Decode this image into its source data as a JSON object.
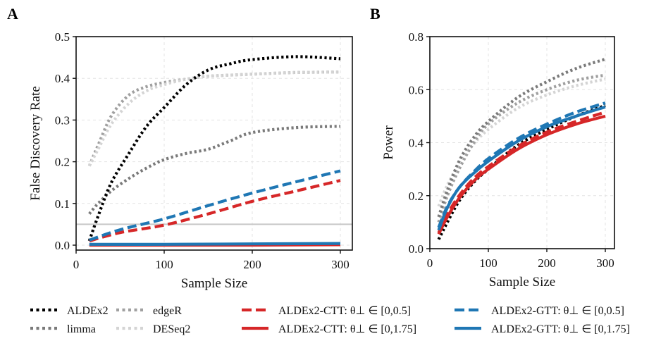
{
  "chart_data": [
    {
      "type": "line",
      "panel": "A",
      "title": "",
      "xlabel": "Sample Size",
      "ylabel": "False Discovery Rate",
      "xlim": [
        0,
        310
      ],
      "ylim": [
        -0.01,
        0.5
      ],
      "xticks": [
        0,
        100,
        200,
        300
      ],
      "yticks": [
        0.0,
        0.1,
        0.2,
        0.3,
        0.4,
        0.5
      ],
      "xtick_labels": [
        "0",
        "100",
        "200",
        "300"
      ],
      "ytick_labels": [
        "0.0",
        "0.1",
        "0.2",
        "0.3",
        "0.4",
        "0.5"
      ],
      "grid": true,
      "reference_line": {
        "y": 0.05,
        "color": "#c8c8c8"
      },
      "series": [
        {
          "name": "edgeR",
          "x": [
            15,
            25,
            40,
            60,
            80,
            100,
            125,
            150,
            200,
            250,
            300
          ],
          "y": [
            0.19,
            0.24,
            0.31,
            0.36,
            0.38,
            0.39,
            0.398,
            0.405,
            0.41,
            0.414,
            0.415
          ]
        },
        {
          "name": "DESeq2",
          "x": [
            15,
            25,
            40,
            60,
            80,
            100,
            125,
            150,
            200,
            250,
            300
          ],
          "y": [
            0.19,
            0.23,
            0.29,
            0.34,
            0.37,
            0.385,
            0.398,
            0.405,
            0.41,
            0.414,
            0.415
          ]
        },
        {
          "name": "limma",
          "x": [
            15,
            25,
            40,
            60,
            80,
            100,
            125,
            150,
            175,
            200,
            250,
            300
          ],
          "y": [
            0.075,
            0.1,
            0.13,
            0.16,
            0.185,
            0.205,
            0.22,
            0.23,
            0.25,
            0.27,
            0.282,
            0.285
          ]
        },
        {
          "name": "ALDEx2",
          "x": [
            15,
            25,
            40,
            60,
            80,
            100,
            125,
            150,
            175,
            200,
            250,
            300
          ],
          "y": [
            0.01,
            0.07,
            0.15,
            0.22,
            0.285,
            0.33,
            0.385,
            0.42,
            0.435,
            0.445,
            0.452,
            0.447
          ]
        },
        {
          "name": "ALDEx2-CTT: θ⊥ ∈ [0,0.5]",
          "x": [
            15,
            50,
            100,
            150,
            200,
            250,
            300
          ],
          "y": [
            0.01,
            0.03,
            0.048,
            0.075,
            0.105,
            0.13,
            0.155
          ]
        },
        {
          "name": "ALDEx2-CTT: θ⊥ ∈ [0,1.75]",
          "x": [
            15,
            100,
            200,
            300
          ],
          "y": [
            0.0,
            0.0,
            0.0,
            0.001
          ]
        },
        {
          "name": "ALDEx2-GTT: θ⊥ ∈ [0,0.5]",
          "x": [
            15,
            50,
            100,
            150,
            200,
            250,
            300
          ],
          "y": [
            0.012,
            0.037,
            0.063,
            0.095,
            0.125,
            0.152,
            0.178
          ]
        },
        {
          "name": "ALDEx2-GTT: θ⊥ ∈ [0,1.75]",
          "x": [
            15,
            100,
            200,
            300
          ],
          "y": [
            0.002,
            0.002,
            0.003,
            0.004
          ]
        }
      ]
    },
    {
      "type": "line",
      "panel": "B",
      "title": "",
      "xlabel": "Sample Size",
      "ylabel": "Power",
      "xlim": [
        0,
        315
      ],
      "ylim": [
        0.0,
        0.8
      ],
      "xticks": [
        0,
        100,
        200,
        300
      ],
      "yticks": [
        0.0,
        0.2,
        0.4,
        0.6,
        0.8
      ],
      "xtick_labels": [
        "0",
        "100",
        "200",
        "300"
      ],
      "ytick_labels": [
        "0.0",
        "0.2",
        "0.4",
        "0.6",
        "0.8"
      ],
      "grid": true,
      "series": [
        {
          "name": "DESeq2",
          "x": [
            15,
            30,
            50,
            75,
            100,
            150,
            200,
            250,
            300
          ],
          "y": [
            0.16,
            0.24,
            0.32,
            0.395,
            0.45,
            0.53,
            0.58,
            0.615,
            0.64
          ]
        },
        {
          "name": "edgeR",
          "x": [
            15,
            30,
            50,
            75,
            100,
            150,
            200,
            250,
            300
          ],
          "y": [
            0.1,
            0.2,
            0.3,
            0.4,
            0.47,
            0.55,
            0.6,
            0.635,
            0.655
          ]
        },
        {
          "name": "limma",
          "x": [
            15,
            30,
            50,
            75,
            100,
            150,
            200,
            250,
            300
          ],
          "y": [
            0.12,
            0.22,
            0.33,
            0.42,
            0.48,
            0.57,
            0.63,
            0.68,
            0.715
          ]
        },
        {
          "name": "ALDEx2",
          "x": [
            15,
            30,
            50,
            75,
            100,
            150,
            200,
            250,
            300
          ],
          "y": [
            0.035,
            0.1,
            0.18,
            0.25,
            0.3,
            0.39,
            0.45,
            0.5,
            0.54
          ]
        },
        {
          "name": "ALDEx2-CTT: θ⊥ ∈ [0,0.5]",
          "x": [
            15,
            30,
            50,
            75,
            100,
            150,
            200,
            250,
            300
          ],
          "y": [
            0.06,
            0.13,
            0.2,
            0.265,
            0.31,
            0.385,
            0.44,
            0.48,
            0.515
          ]
        },
        {
          "name": "ALDEx2-CTT: θ⊥ ∈ [0,1.75]",
          "x": [
            15,
            30,
            50,
            75,
            100,
            150,
            200,
            250,
            300
          ],
          "y": [
            0.055,
            0.12,
            0.19,
            0.255,
            0.3,
            0.375,
            0.43,
            0.47,
            0.5
          ]
        },
        {
          "name": "ALDEx2-GTT: θ⊥ ∈ [0,0.5]",
          "x": [
            15,
            30,
            50,
            75,
            100,
            150,
            200,
            250,
            300
          ],
          "y": [
            0.08,
            0.16,
            0.23,
            0.29,
            0.34,
            0.415,
            0.47,
            0.515,
            0.55
          ]
        },
        {
          "name": "ALDEx2-GTT: θ⊥ ∈ [0,1.75]",
          "x": [
            15,
            30,
            50,
            75,
            100,
            150,
            200,
            250,
            300
          ],
          "y": [
            0.07,
            0.155,
            0.23,
            0.285,
            0.33,
            0.405,
            0.46,
            0.5,
            0.535
          ]
        }
      ]
    }
  ],
  "panel_labels": [
    "A",
    "B"
  ],
  "legend": {
    "placement": "bottom",
    "entries": [
      {
        "label": "ALDEx2",
        "color": "#000000",
        "style": "dotted"
      },
      {
        "label": "limma",
        "color": "#7a7a7a",
        "style": "dotted"
      },
      {
        "label": "edgeR",
        "color": "#a0a0a0",
        "style": "dotted"
      },
      {
        "label": "DESeq2",
        "color": "#d4d4d4",
        "style": "dotted"
      },
      {
        "label": "ALDEx2-CTT: θ⊥ ∈ [0,0.5]",
        "color": "#d62728",
        "style": "dashed"
      },
      {
        "label": "ALDEx2-CTT: θ⊥ ∈ [0,1.75]",
        "color": "#d62728",
        "style": "solid"
      },
      {
        "label": "ALDEx2-GTT: θ⊥ ∈ [0,0.5]",
        "color": "#1f77b4",
        "style": "dashed"
      },
      {
        "label": "ALDEx2-GTT: θ⊥ ∈ [0,1.75]",
        "color": "#1f77b4",
        "style": "solid"
      }
    ]
  },
  "styles": {
    "ALDEx2": {
      "color": "#000000",
      "dash": "dotted"
    },
    "limma": {
      "color": "#7a7a7a",
      "dash": "dotted"
    },
    "edgeR": {
      "color": "#a0a0a0",
      "dash": "dotted"
    },
    "DESeq2": {
      "color": "#d4d4d4",
      "dash": "dotted"
    },
    "ALDEx2-CTT: θ⊥ ∈ [0,0.5]": {
      "color": "#d62728",
      "dash": "dashed"
    },
    "ALDEx2-CTT: θ⊥ ∈ [0,1.75]": {
      "color": "#d62728",
      "dash": "solid"
    },
    "ALDEx2-GTT: θ⊥ ∈ [0,0.5]": {
      "color": "#1f77b4",
      "dash": "dashed"
    },
    "ALDEx2-GTT: θ⊥ ∈ [0,1.75]": {
      "color": "#1f77b4",
      "dash": "solid"
    }
  }
}
